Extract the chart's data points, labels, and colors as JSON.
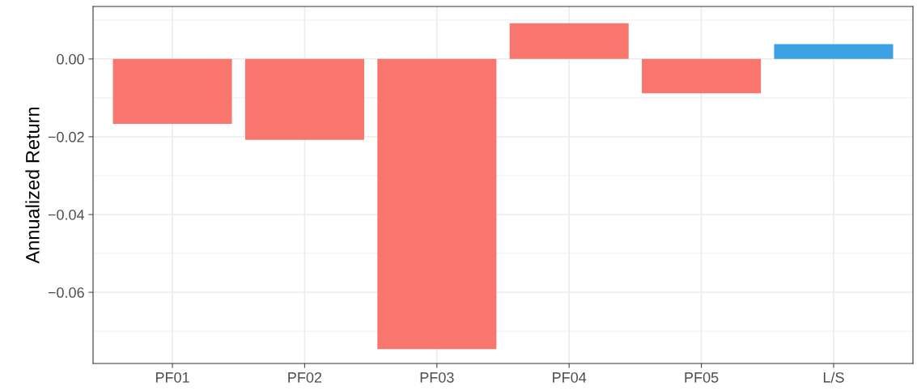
{
  "chart_data": {
    "type": "bar",
    "ylabel": "Annualized Return",
    "categories": [
      "PF01",
      "PF02",
      "PF03",
      "PF04",
      "PF05",
      "L/S"
    ],
    "values": [
      -0.0167,
      -0.0208,
      -0.0746,
      0.0092,
      -0.0088,
      0.0038
    ],
    "colors": [
      "#f8766d",
      "#f8766d",
      "#f8766d",
      "#f8766d",
      "#f8766d",
      "#3ba1e2"
    ],
    "ylim": [
      -0.0783,
      0.0135
    ],
    "yticks": [
      {
        "value": -0.06,
        "label": "−0.06"
      },
      {
        "value": -0.04,
        "label": "−0.04"
      },
      {
        "value": -0.02,
        "label": "−0.02"
      },
      {
        "value": 0,
        "label": "0.00"
      }
    ],
    "grid": true
  }
}
